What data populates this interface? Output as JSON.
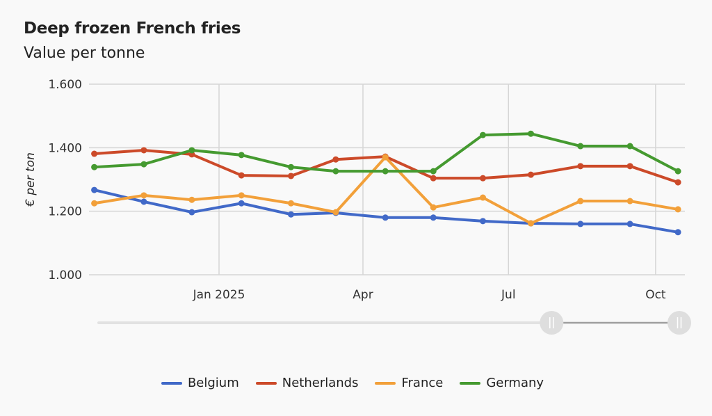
{
  "chart_data": {
    "type": "line",
    "title": "Deep frozen French fries",
    "subtitle": "Value per tonne",
    "ylabel": "€ per ton",
    "xlabel": "",
    "ylim": [
      1000,
      1600
    ],
    "yticks": [
      1000,
      1200,
      1400,
      1600
    ],
    "ytick_labels": [
      "1.000",
      "1.200",
      "1.400",
      "1.600"
    ],
    "xticks": [
      {
        "date": "2025-01-01",
        "label": "Jan 2025"
      },
      {
        "date": "2025-04-01",
        "label": "Apr"
      },
      {
        "date": "2025-07-01",
        "label": "Jul"
      },
      {
        "date": "2025-10-01",
        "label": "Oct"
      }
    ],
    "grid": true,
    "legend_position": "bottom",
    "x": [
      "2024-10-15",
      "2024-11-15",
      "2024-12-15",
      "2025-01-15",
      "2025-02-15",
      "2025-03-15",
      "2025-04-15",
      "2025-05-15",
      "2025-06-15",
      "2025-07-15",
      "2025-08-15",
      "2025-09-15",
      "2025-10-15"
    ],
    "series": [
      {
        "name": "Belgium",
        "color": "#4169c8",
        "values": [
          1267,
          1230,
          1197,
          1225,
          1190,
          1195,
          1180,
          1180,
          1169,
          1162,
          1160,
          1160,
          1134
        ]
      },
      {
        "name": "Netherlands",
        "color": "#cc4a29",
        "values": [
          1381,
          1392,
          1379,
          1313,
          1311,
          1363,
          1372,
          1304,
          1304,
          1315,
          1342,
          1342,
          1291
        ]
      },
      {
        "name": "France",
        "color": "#f2a03a",
        "values": [
          1225,
          1250,
          1236,
          1250,
          1225,
          1197,
          1370,
          1212,
          1243,
          1162,
          1232,
          1232,
          1206
        ]
      },
      {
        "name": "Germany",
        "color": "#459a30",
        "values": [
          1339,
          1348,
          1392,
          1377,
          1339,
          1326,
          1326,
          1326,
          1440,
          1444,
          1405,
          1405,
          1326
        ]
      }
    ]
  },
  "range_slider": {
    "start_fraction": 0.78,
    "end_fraction": 1.0
  }
}
